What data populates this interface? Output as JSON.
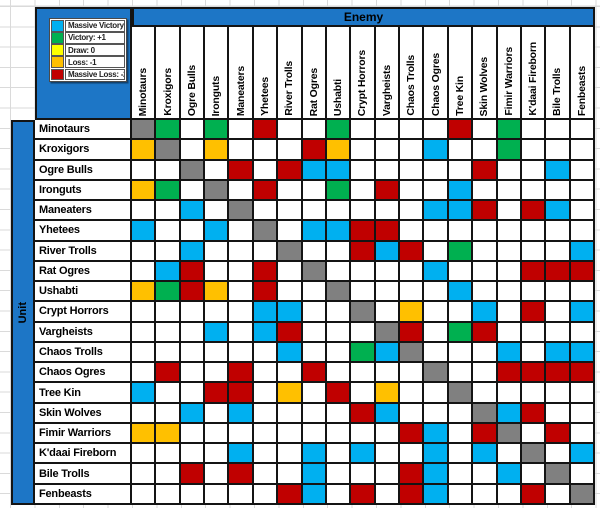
{
  "axis": {
    "enemy_label": "Enemy",
    "unit_label": "Unit"
  },
  "legend": {
    "items": [
      {
        "label": "Massive Victory: +2",
        "key": "B"
      },
      {
        "label": "Victory: +1",
        "key": "G"
      },
      {
        "label": "Draw: 0",
        "key": "Y"
      },
      {
        "label": "Loss: -1",
        "key": "O"
      },
      {
        "label": "Massive Loss: -2",
        "key": "R"
      }
    ]
  },
  "units": [
    "Minotaurs",
    "Kroxigors",
    "Ogre Bulls",
    "Ironguts",
    "Maneaters",
    "Yhetees",
    "River Trolls",
    "Rat Ogres",
    "Ushabti",
    "Crypt Horrors",
    "Vargheists",
    "Chaos Trolls",
    "Chaos Ogres",
    "Tree Kin",
    "Skin Wolves",
    "Fimir Warriors",
    "K'daai Fireborn",
    "Bile Trolls",
    "Fenbeasts"
  ],
  "enemies": [
    "Minotaurs",
    "Kroxigors",
    "Ogre Bulls",
    "Ironguts",
    "Maneaters",
    "Yhetees",
    "River Trolls",
    "Rat Ogres",
    "Ushabti",
    "Crypt Horrors",
    "Vargheists",
    "Chaos Trolls",
    "Chaos Ogres",
    "Tree Kin",
    "Skin Wolves",
    "Fimir Warriors",
    "K'daai Fireborn",
    "Bile Trolls",
    "Fenbeasts"
  ],
  "result_colors": {
    "W": "#FFFFFF",
    "B": "#00B0F0",
    "G": "#00B050",
    "Y": "#FFFF00",
    "O": "#FFC000",
    "R": "#C00000",
    "D": "#808080"
  },
  "band_color": "#1D76C6",
  "matrix": [
    "DGWGWRWWGWWWWRWGWWW",
    "ODWOWWWROWWWBWWGWWW",
    "WWDWRWRBBWWWWWRWWBW",
    "OGWDWRWWGWRWWBWWWWW",
    "WWBWDWWWWWWWBBRWRBW",
    "BWWBWDWBBRRWWWWWWWW",
    "WWBWWWDWWRBRWGWWWWB",
    "WBRWWRWDWWWWBWWWRRR",
    "OGROWRWWDWWWWBWWWWW",
    "WWWWWBBWWDWOWWBWRWB",
    "WWWBWBRWWWDRWGRWWWW",
    "WWWWWWBWWGBDWWWBWBB",
    "WRWWRWWRWWWWDWWRRRR",
    "BWWRRWOWRWOWWDWWWWW",
    "WWBWBWWWWRBWWWDBRWW",
    "OOWWWWWWWWWRBWRDWRW",
    "WWWWBWWBWBWWBWBWDWB",
    "WWRWRWWBWWWRBWWBWDW",
    "WWWWWWRBWRWRBWWWRWD"
  ]
}
